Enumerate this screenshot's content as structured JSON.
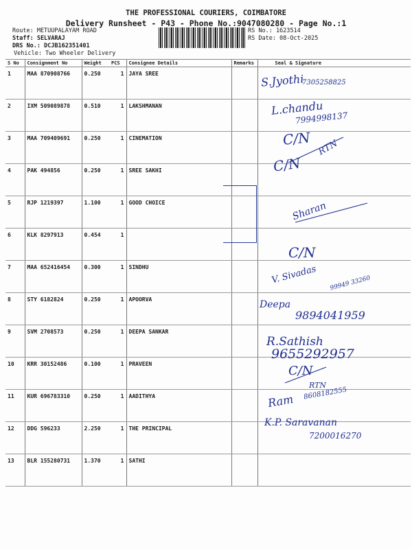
{
  "header": {
    "company": "THE PROFESSIONAL COURIERS, COIMBATORE",
    "subtitle": "Delivery Runsheet - P43 - Phone No.:9047080280 - Page No.:1",
    "route": "Route: METUUPALAYAM ROAD",
    "staff": "Staff: SELVARAJ",
    "drs_no": "DRS No.: DCJB162351401",
    "vehicle": "Vehicle: Two Wheeler Delivery",
    "rs_no": "RS No.: 1623514",
    "rs_date": "RS Date: 08-Oct-2025"
  },
  "table": {
    "columns": [
      "S No",
      "Consignment No",
      "Weight",
      "PCS",
      "Consignee Details",
      "Remarks",
      "Seal & Signature"
    ],
    "rows": [
      [
        "1",
        "MAA 870908766",
        "0.250",
        "1",
        "JAYA SREE"
      ],
      [
        "2",
        "IXM 509089878",
        "0.510",
        "1",
        "LAKSHMANAN"
      ],
      [
        "3",
        "MAA 709409691",
        "0.250",
        "1",
        "CINEMATION"
      ],
      [
        "4",
        "PAK 494856",
        "0.250",
        "1",
        "SREE SAKHI"
      ],
      [
        "5",
        "RJP 1219397",
        "1.100",
        "1",
        "GOOD CHOICE"
      ],
      [
        "6",
        "KLK 8297913",
        "0.454",
        "1",
        ""
      ],
      [
        "7",
        "MAA 652416454",
        "0.300",
        "1",
        "SINDHU"
      ],
      [
        "8",
        "STY 6182824",
        "0.250",
        "1",
        "APOORVA"
      ],
      [
        "9",
        "SVM 2708573",
        "0.250",
        "1",
        "DEEPA SANKAR"
      ],
      [
        "10",
        "KRR 30152486",
        "0.100",
        "1",
        "PRAVEEN"
      ],
      [
        "11",
        "KUR 696783310",
        "0.250",
        "1",
        "AADITHYA"
      ],
      [
        "12",
        "DDG 596233",
        "2.250",
        "1",
        "THE PRINCIPAL"
      ],
      [
        "13",
        "BLR 155280731",
        "1.370",
        "1",
        "SATHI"
      ]
    ]
  },
  "handwriting": {
    "r1_sig": "S.Jyothi",
    "r1_phone": "7305258825",
    "r2_sig": "L.chandu",
    "r2_phone": "7994998137",
    "r3_cn": "C/N",
    "r4_cn": "C/N",
    "r4_rtn": "RTN",
    "r6_sig": "Sharan",
    "r7_cn": "C/N",
    "r8_sig": "V. Sivadas",
    "r8_phone": "99949 33260",
    "r9_sig": "Deepa",
    "r9_phone": "9894041959",
    "r10_sig": "R.Sathish",
    "r10_phone": "9655292957",
    "r11_cn": "C/N",
    "r11_rtn": "RTN",
    "r12_sig": "Ram",
    "r12_phone": "8608182555",
    "r13_sig": "K.P. Saravanan",
    "r13_phone": "7200016270",
    "ink_color": "#1f2e8f"
  }
}
